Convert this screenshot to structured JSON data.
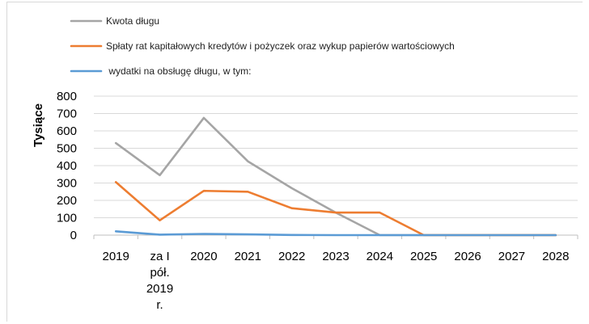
{
  "chart_data": {
    "type": "line",
    "title": "",
    "xlabel": "",
    "ylabel": "Tysiące",
    "ylim": [
      0,
      800
    ],
    "yticks": [
      0,
      100,
      200,
      300,
      400,
      500,
      600,
      700,
      800
    ],
    "grid": true,
    "legend_position": "top-left",
    "categories": [
      [
        "2019"
      ],
      [
        "za I",
        "pół.",
        "2019",
        "r."
      ],
      [
        "2020"
      ],
      [
        "2021"
      ],
      [
        "2022"
      ],
      [
        "2023"
      ],
      [
        "2024"
      ],
      [
        "2025"
      ],
      [
        "2026"
      ],
      [
        "2027"
      ],
      [
        "2028"
      ]
    ],
    "series": [
      {
        "name": "Kwota długu",
        "color": "#a5a5a5",
        "values": [
          530,
          345,
          675,
          425,
          270,
          130,
          0,
          0,
          0,
          0,
          0
        ]
      },
      {
        "name": "Spłaty rat kapitałowych kredytów i pożyczek oraz wykup papierów wartościowych",
        "color": "#ed7d31",
        "values": [
          305,
          85,
          255,
          250,
          155,
          130,
          130,
          0,
          0,
          0,
          0
        ]
      },
      {
        "name": " wydatki na obsługę długu, w tym:",
        "color": "#5b9bd5",
        "values": [
          22,
          3,
          7,
          4,
          1,
          0,
          0,
          0,
          0,
          0,
          0
        ]
      }
    ]
  }
}
